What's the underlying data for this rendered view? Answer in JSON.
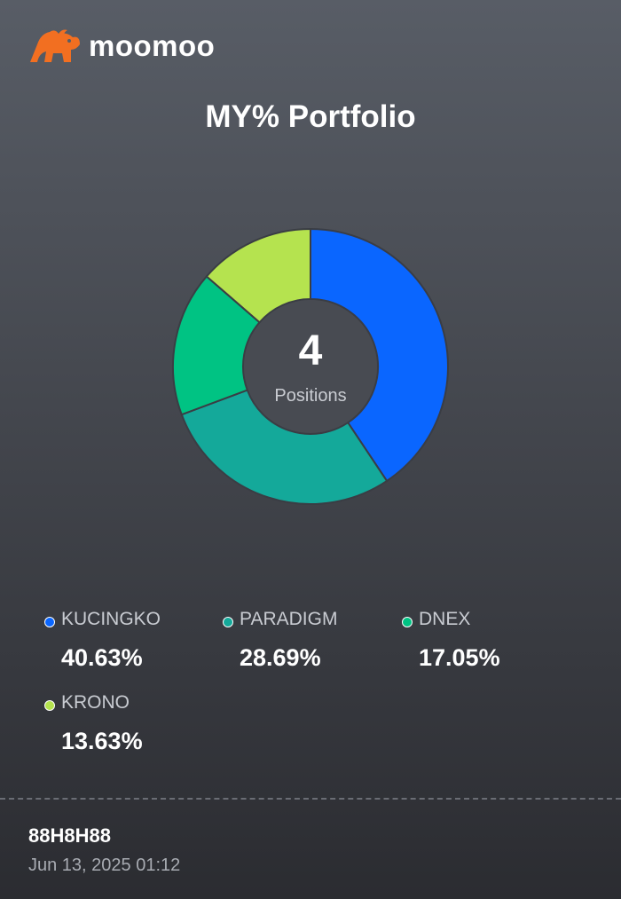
{
  "brand": {
    "name": "moomoo",
    "logo_icon": "bull-logo-icon",
    "logo_color": "#f26f21"
  },
  "chart_data": {
    "type": "pie",
    "style": "donut",
    "title": "MY% Portfolio",
    "center": {
      "count": "4",
      "label": "Positions"
    },
    "categories": [
      "KUCINGKO",
      "PARADIGM",
      "DNEX",
      "KRONO"
    ],
    "values": [
      40.63,
      28.69,
      17.05,
      13.63
    ],
    "labels": [
      "40.63%",
      "28.69%",
      "17.05%",
      "13.63%"
    ],
    "colors": [
      "#0a66ff",
      "#14a99a",
      "#00c383",
      "#b5e34f"
    ]
  },
  "footer": {
    "account": "88H8H88",
    "timestamp": "Jun 13, 2025 01:12"
  }
}
